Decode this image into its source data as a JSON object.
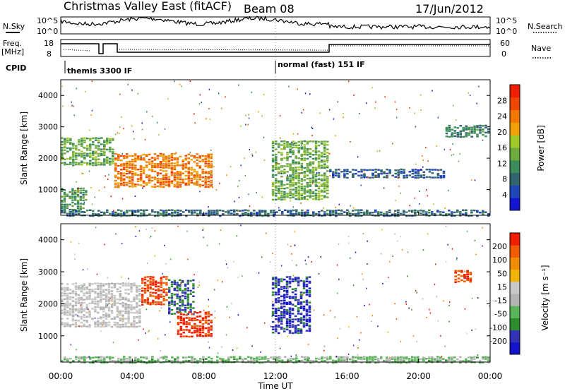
{
  "header": {
    "title": "Christmas Valley East (fitACF)",
    "beam": "Beam 08",
    "date": "17/Jun/2012"
  },
  "top_panels": {
    "nsky_label": "N.Sky",
    "nsky_ticks": [
      "10^5",
      "10^0"
    ],
    "nsearch_label": "N.Search",
    "nsearch_ticks": [
      "10^5",
      "10^0"
    ],
    "freq_label_1": "Freq.",
    "freq_label_2": "[MHz]",
    "freq_ticks": [
      "18",
      "8"
    ],
    "nave_label": "Nave",
    "nave_ticks": [
      "60",
      "0"
    ],
    "cpid_label": "CPID",
    "cpid_entries": [
      "themis 3300 IF",
      "normal (fast) 151 IF"
    ]
  },
  "colors": {
    "power_scale": [
      "#1414d2",
      "#1e46b4",
      "#32646e",
      "#3c8c5a",
      "#6eaa3c",
      "#a0c828",
      "#f0a000",
      "#f07800",
      "#f04600",
      "#f01e00"
    ],
    "velocity_scale": [
      "#1414c8",
      "#3232b4",
      "#2d8c2d",
      "#5ab45a",
      "#b4b4b4",
      "#c8c8c8",
      "#f0b400",
      "#f08c00",
      "#f05a00",
      "#f01e00"
    ]
  },
  "chart_data": [
    {
      "type": "heatmap",
      "panel": "power",
      "ylabel": "Slant Range [km]",
      "ylim": [
        180,
        4500
      ],
      "yticks": [
        "1000",
        "2000",
        "3000",
        "4000"
      ],
      "colorbar_label": "Power [dB]",
      "colorbar_ticks": [
        "4",
        "8",
        "12",
        "16",
        "20",
        "24",
        "28"
      ],
      "clim": [
        0,
        32
      ],
      "regions": [
        {
          "x": [
            0.0,
            3.0
          ],
          "range": [
            1800,
            2700
          ],
          "value": 14
        },
        {
          "x": [
            3.0,
            8.5
          ],
          "range": [
            1100,
            2200
          ],
          "value": 24
        },
        {
          "x": [
            0.0,
            1.5
          ],
          "range": [
            300,
            1100
          ],
          "value": 12
        },
        {
          "x": [
            11.8,
            15.0
          ],
          "range": [
            700,
            2600
          ],
          "value": 14
        },
        {
          "x": [
            15.0,
            21.5
          ],
          "range": [
            1400,
            1700
          ],
          "value": 6
        },
        {
          "x": [
            21.5,
            24.0
          ],
          "range": [
            2700,
            3100
          ],
          "value": 10
        },
        {
          "x": [
            0.0,
            24.0
          ],
          "range": [
            180,
            400
          ],
          "value": 8
        }
      ]
    },
    {
      "type": "heatmap",
      "panel": "velocity",
      "xlabel": "Time UT",
      "xticks": [
        "00:00",
        "04:00",
        "08:00",
        "12:00",
        "16:00",
        "20:00",
        "00:00"
      ],
      "xlim": [
        0,
        24
      ],
      "ylabel": "Slant Range [km]",
      "ylim": [
        180,
        4500
      ],
      "yticks": [
        "1000",
        "2000",
        "3000",
        "4000"
      ],
      "colorbar_label": "Velocity [m s⁻¹]",
      "colorbar_ticks": [
        "200",
        "100",
        "50",
        "15",
        "-15",
        "-50",
        "-100",
        "-200"
      ],
      "clim": [
        -250,
        250
      ],
      "regions": [
        {
          "x": [
            0.0,
            4.5
          ],
          "range": [
            1300,
            2700
          ],
          "value": 0
        },
        {
          "x": [
            4.5,
            6.0
          ],
          "range": [
            2000,
            2900
          ],
          "value": 200
        },
        {
          "x": [
            6.0,
            7.5
          ],
          "range": [
            1700,
            2800
          ],
          "value": -150
        },
        {
          "x": [
            6.5,
            8.5
          ],
          "range": [
            1000,
            1800
          ],
          "value": 220
        },
        {
          "x": [
            11.8,
            14.0
          ],
          "range": [
            1100,
            2900
          ],
          "value": -180
        },
        {
          "x": [
            22.0,
            23.0
          ],
          "range": [
            2700,
            3100
          ],
          "value": 200
        },
        {
          "x": [
            0.0,
            24.0
          ],
          "range": [
            180,
            400
          ],
          "value": -60
        }
      ]
    }
  ]
}
